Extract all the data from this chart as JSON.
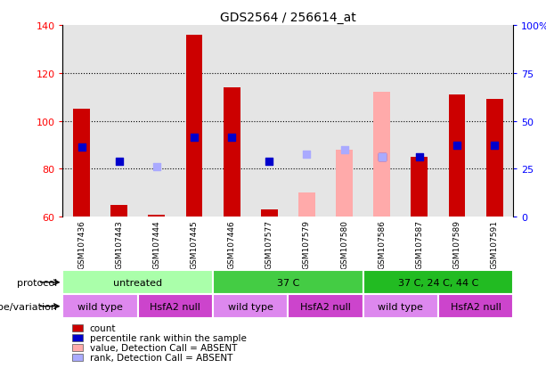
{
  "title": "GDS2564 / 256614_at",
  "samples": [
    "GSM107436",
    "GSM107443",
    "GSM107444",
    "GSM107445",
    "GSM107446",
    "GSM107577",
    "GSM107579",
    "GSM107580",
    "GSM107586",
    "GSM107587",
    "GSM107589",
    "GSM107591"
  ],
  "bar_bottom": 60,
  "red_bars": [
    105,
    65,
    61,
    136,
    114,
    63,
    null,
    null,
    null,
    85,
    111,
    109
  ],
  "blue_dots": [
    89,
    83,
    null,
    93,
    93,
    83,
    null,
    null,
    85,
    85,
    90,
    90
  ],
  "pink_bars": [
    null,
    null,
    null,
    null,
    null,
    null,
    70,
    88,
    112,
    null,
    null,
    null
  ],
  "lightblue_dots": [
    null,
    null,
    81,
    null,
    null,
    null,
    86,
    88,
    85,
    null,
    null,
    null
  ],
  "ylim_left": [
    60,
    140
  ],
  "ylim_right": [
    0,
    100
  ],
  "right_ticks": [
    0,
    25,
    50,
    75,
    100
  ],
  "right_tick_labels": [
    "0",
    "25",
    "50",
    "75",
    "100%"
  ],
  "left_ticks": [
    60,
    80,
    100,
    120,
    140
  ],
  "gridlines": [
    80,
    100,
    120
  ],
  "protocol_groups": [
    {
      "label": "untreated",
      "start": 0,
      "end": 4,
      "color": "#aaffaa"
    },
    {
      "label": "37 C",
      "start": 4,
      "end": 8,
      "color": "#44cc44"
    },
    {
      "label": "37 C, 24 C, 44 C",
      "start": 8,
      "end": 12,
      "color": "#22bb22"
    }
  ],
  "genotype_groups": [
    {
      "label": "wild type",
      "start": 0,
      "end": 2,
      "color": "#dd88ee"
    },
    {
      "label": "HsfA2 null",
      "start": 2,
      "end": 4,
      "color": "#cc44cc"
    },
    {
      "label": "wild type",
      "start": 4,
      "end": 6,
      "color": "#dd88ee"
    },
    {
      "label": "HsfA2 null",
      "start": 6,
      "end": 8,
      "color": "#cc44cc"
    },
    {
      "label": "wild type",
      "start": 8,
      "end": 10,
      "color": "#dd88ee"
    },
    {
      "label": "HsfA2 null",
      "start": 10,
      "end": 12,
      "color": "#cc44cc"
    }
  ],
  "legend_items": [
    {
      "label": "count",
      "color": "#cc0000"
    },
    {
      "label": "percentile rank within the sample",
      "color": "#0000cc"
    },
    {
      "label": "value, Detection Call = ABSENT",
      "color": "#ffaaaa"
    },
    {
      "label": "rank, Detection Call = ABSENT",
      "color": "#aaaaff"
    }
  ],
  "red_color": "#cc0000",
  "blue_color": "#0000cc",
  "pink_color": "#ffaaaa",
  "lightblue_color": "#aaaaff",
  "bar_width": 0.45,
  "dot_size": 40,
  "col_bg_color": "#cccccc",
  "chart_bg_color": "#ffffff"
}
